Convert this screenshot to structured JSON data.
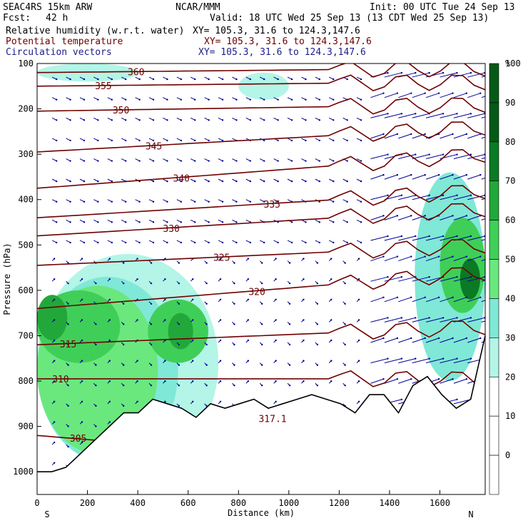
{
  "header": {
    "model": "SEAC4RS 15km ARW",
    "org": "NCAR/MMM",
    "init": "Init: 00 UTC Tue 24 Sep 13",
    "fcst_label": "Fcst:",
    "fcst_value": "42 h",
    "valid": "Valid: 18 UTC Wed 25 Sep 13 (13 CDT Wed 25 Sep 13)",
    "field1_name": "Relative humidity (w.r.t. water)",
    "field1_xy": "XY= 105.3, 31.6 to 124.3,147.6",
    "field2_name": "Potential temperature",
    "field2_xy": "XY= 105.3, 31.6 to 124.3,147.6",
    "field3_name": "Circulation vectors",
    "field3_xy": "XY= 105.3, 31.6 to 124.3,147.6"
  },
  "colors": {
    "rh_fill": [
      "#b3f5e6",
      "#80e8d6",
      "#6ae87e",
      "#3fcf58",
      "#22a83a",
      "#0a7a24",
      "#055a18"
    ],
    "theta": "#6e0000",
    "vectors": "#000096",
    "terrain": "#000000"
  },
  "chart_data": {
    "type": "heatmap",
    "title": "Relative humidity (w.r.t. water)",
    "xlabel": "Distance (km)",
    "ylabel": "Pressure (hPa)",
    "xlim": [
      0,
      1780
    ],
    "ylim": [
      1050,
      100
    ],
    "x_ticks": [
      0,
      200,
      400,
      600,
      800,
      1000,
      1200,
      1400,
      1600
    ],
    "y_ticks": [
      100,
      200,
      300,
      400,
      500,
      600,
      700,
      800,
      900,
      1000
    ],
    "x_end_labels": [
      "S",
      "N"
    ],
    "colorbar_unit": "%",
    "colorbar_ticks": [
      0,
      10,
      20,
      30,
      40,
      50,
      60,
      70,
      80,
      90,
      100
    ],
    "colorbar_colors": [
      "#ffffff",
      "#ffffff",
      "#ffffff",
      "#b3f5e6",
      "#80e8d6",
      "#6ae87e",
      "#3fcf58",
      "#22a83a",
      "#0a7a24",
      "#055a18",
      "#055a18"
    ],
    "rh_regions": [
      {
        "level": 30,
        "x": [
          0,
          720
        ],
        "p": [
          520,
          1000
        ]
      },
      {
        "level": 40,
        "x": [
          0,
          560
        ],
        "p": [
          570,
          980
        ]
      },
      {
        "level": 50,
        "x": [
          0,
          480
        ],
        "p": [
          590,
          960
        ]
      },
      {
        "level": 60,
        "x": [
          0,
          330
        ],
        "p": [
          600,
          760
        ]
      },
      {
        "level": 70,
        "x": [
          0,
          120
        ],
        "p": [
          610,
          710
        ]
      },
      {
        "level": 60,
        "x": [
          440,
          680
        ],
        "p": [
          620,
          760
        ]
      },
      {
        "level": 70,
        "x": [
          520,
          620
        ],
        "p": [
          650,
          730
        ]
      },
      {
        "level": 40,
        "x": [
          1500,
          1780
        ],
        "p": [
          340,
          800
        ]
      },
      {
        "level": 60,
        "x": [
          1600,
          1780
        ],
        "p": [
          440,
          650
        ]
      },
      {
        "level": 80,
        "x": [
          1680,
          1760
        ],
        "p": [
          530,
          620
        ]
      },
      {
        "level": 30,
        "x": [
          0,
          400
        ],
        "p": [
          100,
          140
        ]
      },
      {
        "level": 30,
        "x": [
          800,
          1000
        ],
        "p": [
          120,
          180
        ]
      }
    ],
    "theta_contours": [
      {
        "label": "305",
        "p_left": 920,
        "p_right": 1000,
        "label_x": 130
      },
      {
        "label": "310",
        "p_left": 795,
        "p_right": 795,
        "label_x": 60
      },
      {
        "label": "315",
        "p_left": 720,
        "p_right": 680,
        "label_x": 90
      },
      {
        "label": "320",
        "p_left": 640,
        "p_right": 560,
        "label_x": 840
      },
      {
        "label": "325",
        "p_left": 545,
        "p_right": 500,
        "label_x": 700
      },
      {
        "label": "330",
        "p_left": 480,
        "p_right": 420,
        "label_x": 500
      },
      {
        "label": "335",
        "p_left": 440,
        "p_right": 380,
        "label_x": 900
      },
      {
        "label": "340",
        "p_left": 375,
        "p_right": 300,
        "label_x": 540
      },
      {
        "label": "345",
        "p_left": 295,
        "p_right": 240,
        "label_x": 430
      },
      {
        "label": "350",
        "p_left": 205,
        "p_right": 190,
        "label_x": 300
      },
      {
        "label": "355",
        "p_left": 150,
        "p_right": 140,
        "label_x": 230
      },
      {
        "label": "360",
        "p_left": 120,
        "p_right": 110,
        "label_x": 360
      }
    ],
    "terrain_label": "317.1",
    "terrain_pressure": [
      1000,
      1000,
      990,
      960,
      930,
      900,
      870,
      870,
      840,
      850,
      860,
      880,
      850,
      860,
      850,
      840,
      860,
      850,
      840,
      830,
      840,
      850,
      870,
      830,
      830,
      870,
      810,
      790,
      830,
      860,
      840,
      700
    ]
  }
}
